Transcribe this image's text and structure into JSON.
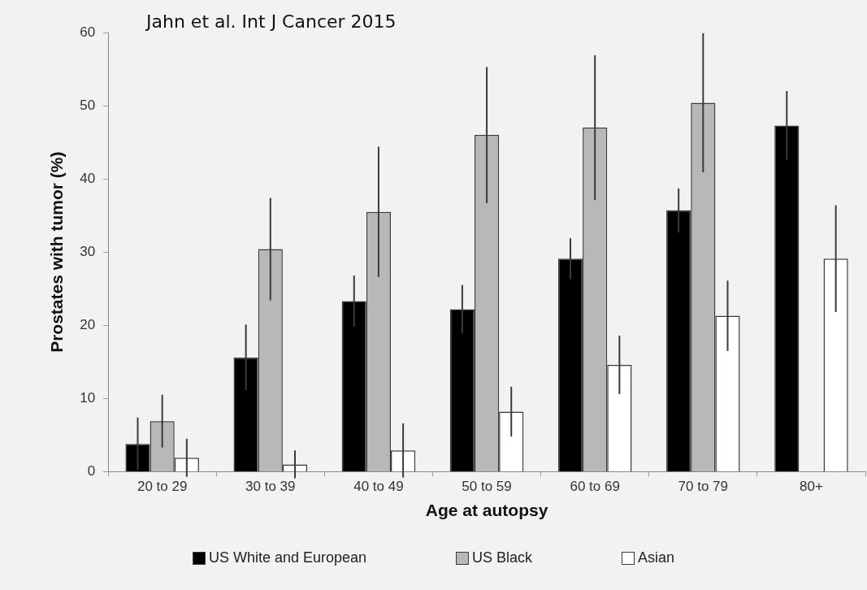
{
  "chart_data": {
    "type": "bar",
    "xlabel": "Age at autopsy",
    "ylabel": "Prostates with tumor (%)",
    "annotations": [
      "Jahn et al. Int J Cancer 2015"
    ],
    "categories": [
      "20 to 29",
      "30 to 39",
      "40 to 49",
      "50 to 59",
      "60 to 69",
      "70 to 79",
      "80+"
    ],
    "series": [
      {
        "name": "US White and European",
        "color": "#000000",
        "values": [
          3.8,
          15.6,
          23.3,
          22.2,
          29.1,
          35.7,
          47.3
        ],
        "errors": [
          3.6,
          4.5,
          3.5,
          3.3,
          2.8,
          3,
          4.7
        ]
      },
      {
        "name": "US Black",
        "color": "#b8b8b8",
        "values": [
          6.9,
          30.4,
          35.5,
          46.0,
          47.0,
          50.4,
          null
        ],
        "errors": [
          3.6,
          7,
          8.9,
          9.3,
          9.9,
          9.5,
          null
        ]
      },
      {
        "name": "Asian",
        "color": "#ffffff",
        "values": [
          1.9,
          1.0,
          2.9,
          8.2,
          14.6,
          21.3,
          29.1
        ],
        "errors": [
          2.6,
          1.9,
          3.7,
          3.4,
          4,
          4.8,
          7.3
        ]
      }
    ],
    "ylim": [
      0,
      60
    ],
    "yticks": [
      0,
      10,
      20,
      30,
      40,
      50,
      60
    ],
    "grid": false,
    "legend": "bottom"
  }
}
